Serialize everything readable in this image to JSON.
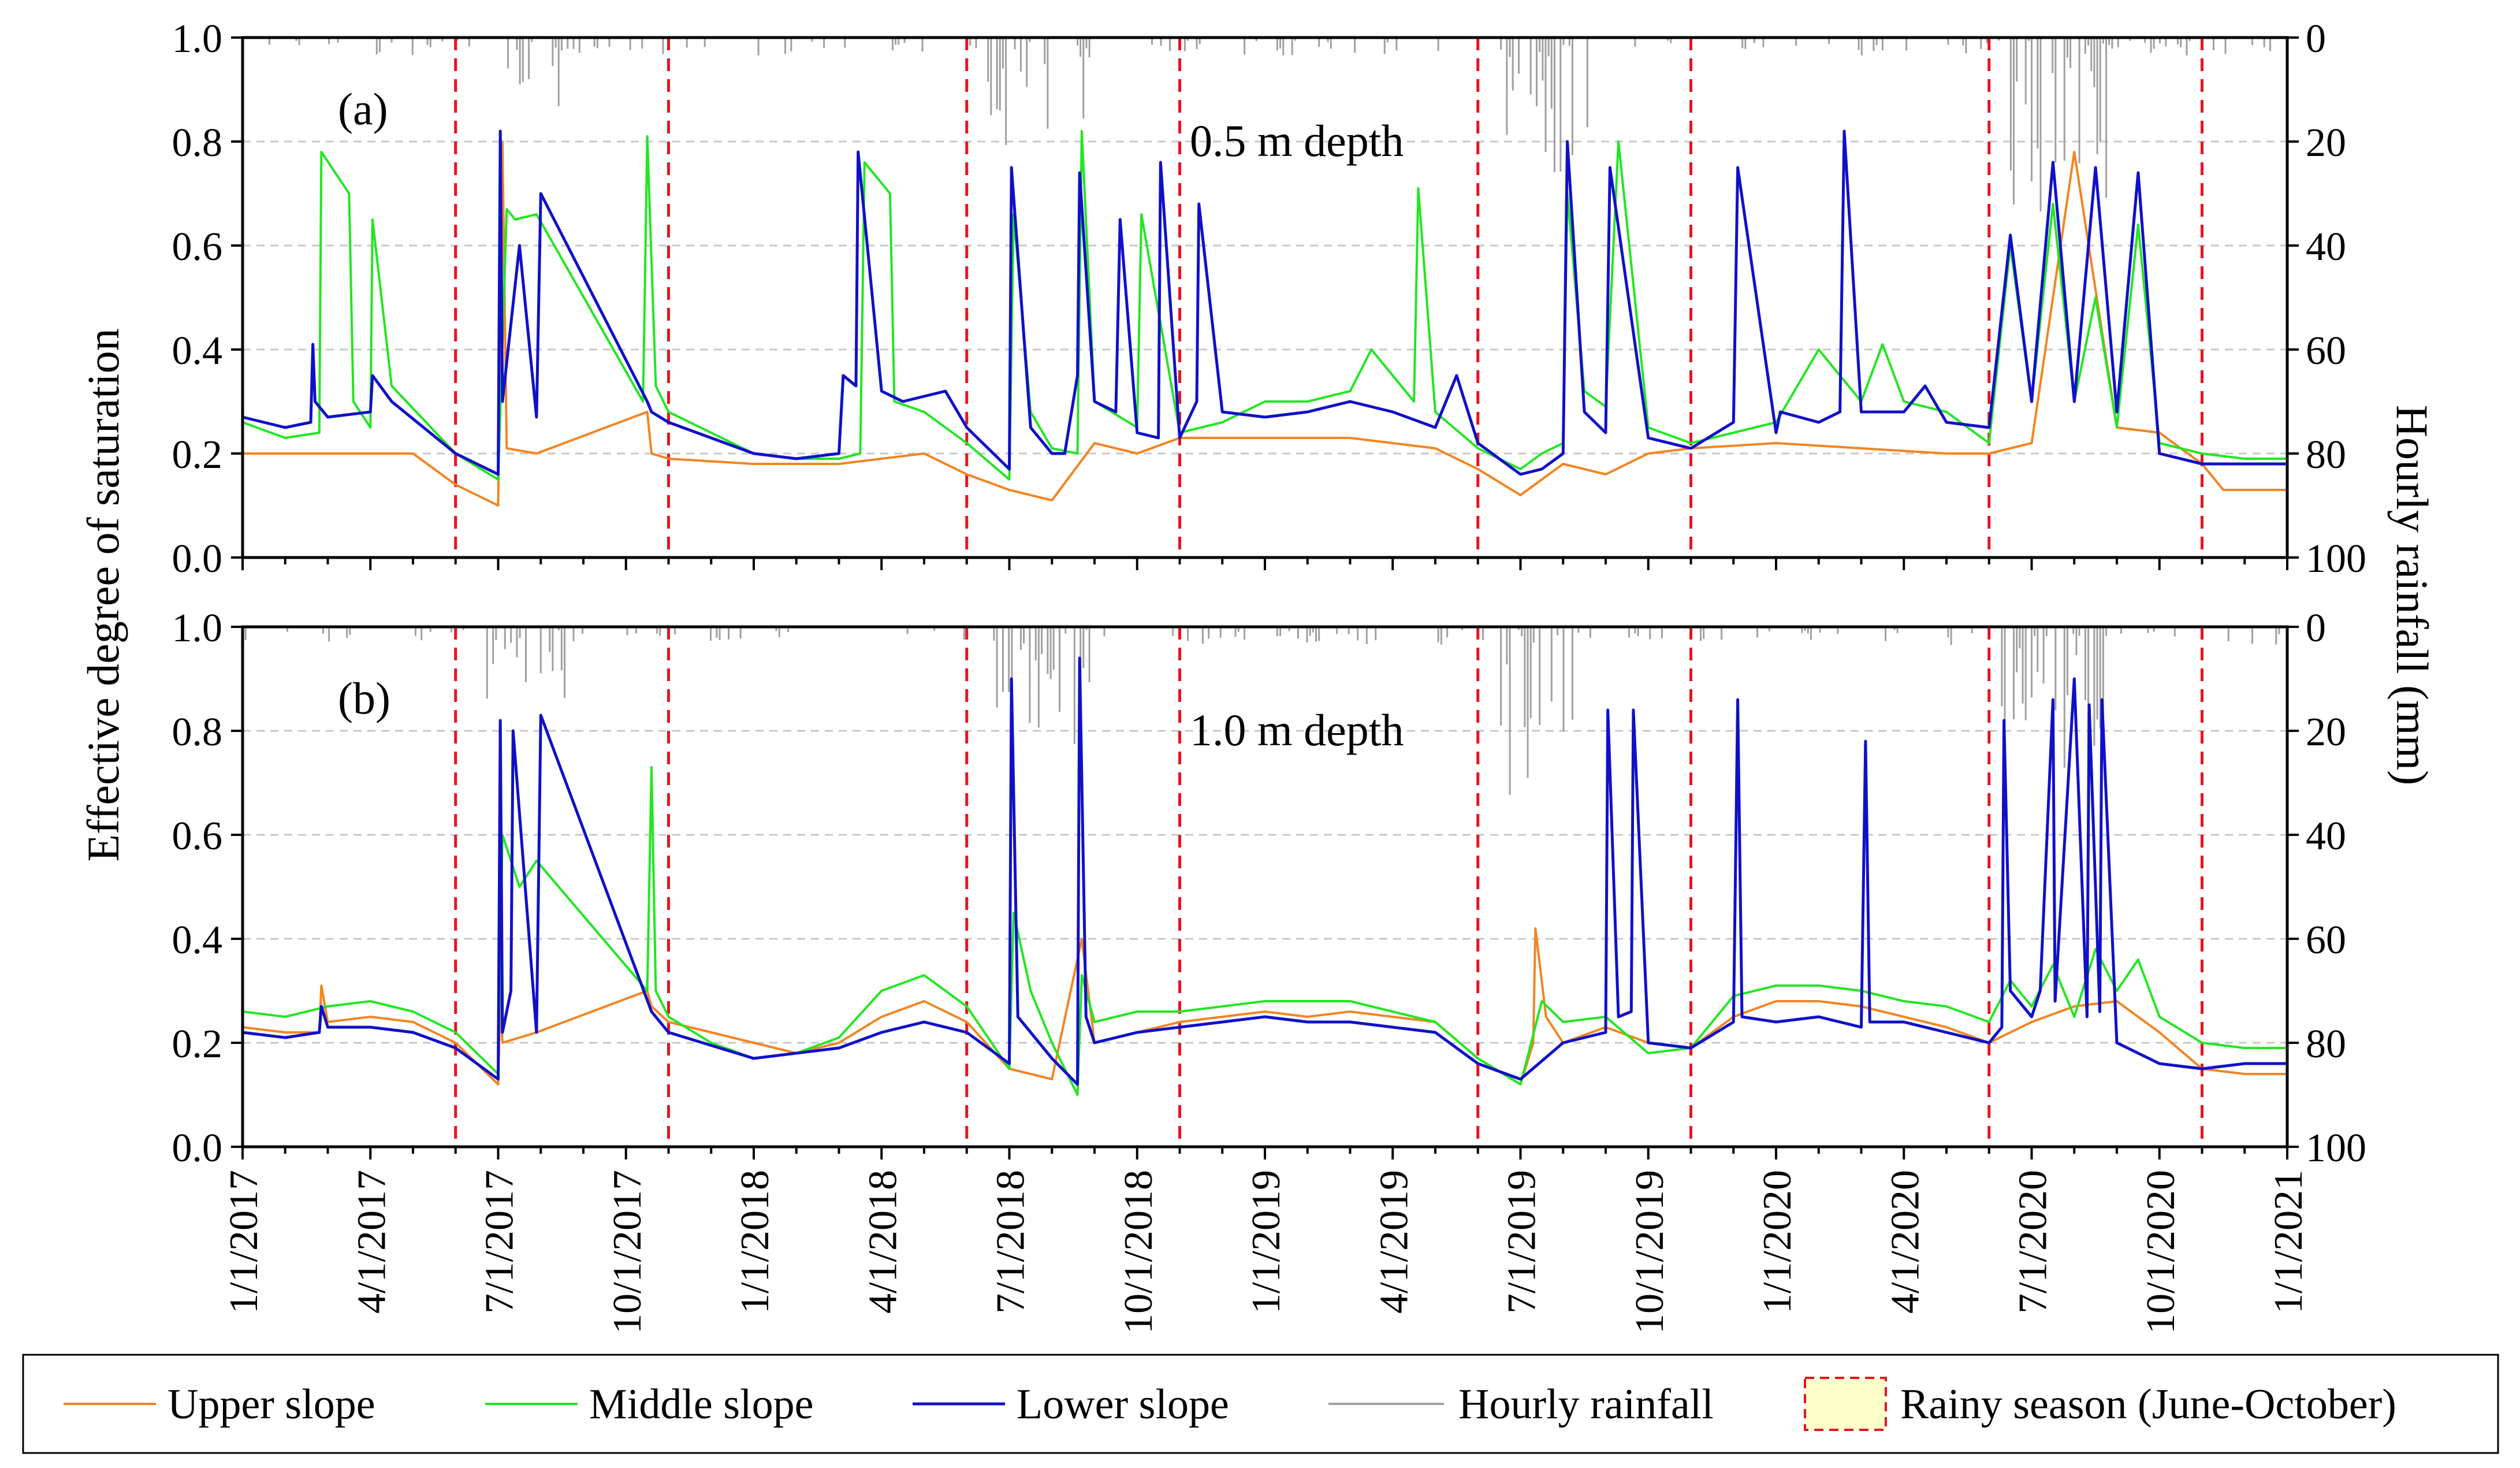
{
  "y_left_label": "Effective degree of saturation",
  "y_right_label": "Hourly rainfall (mm)",
  "x_tick_labels": [
    "1/1/2017",
    "4/1/2017",
    "7/1/2017",
    "10/1/2017",
    "1/1/2018",
    "4/1/2018",
    "7/1/2018",
    "10/1/2018",
    "1/1/2019",
    "4/1/2019",
    "7/1/2019",
    "10/1/2019",
    "1/1/2020",
    "4/1/2020",
    "7/1/2020",
    "10/1/2020",
    "1/1/2021"
  ],
  "y_left_ticks": [
    "0.0",
    "0.2",
    "0.4",
    "0.6",
    "0.8",
    "1.0"
  ],
  "y_right_ticks": [
    "0",
    "20",
    "40",
    "60",
    "80",
    "100"
  ],
  "colors": {
    "upper": "#F28522",
    "middle": "#22E622",
    "lower": "#1010C8",
    "rain": "#A0A0A0",
    "rainy_boundary": "#E8141E",
    "rainy_fill": "#FFFFCC",
    "grid": "#C8C8C8"
  },
  "legend": {
    "upper": "Upper slope",
    "middle": "Middle slope",
    "lower": "Lower slope",
    "rain": "Hourly rainfall",
    "rainy": "Rainy season (June-October)"
  },
  "chart_data": {
    "type": "line",
    "x_unit": "month index since Jan 2017",
    "xlim": [
      0,
      48
    ],
    "x_ticks": [
      0,
      3,
      6,
      9,
      12,
      15,
      18,
      21,
      24,
      27,
      30,
      33,
      36,
      39,
      42,
      45,
      48
    ],
    "ylim_left": [
      0,
      1.0
    ],
    "ylim_right": [
      100,
      0
    ],
    "rainy_season_boundaries": [
      5.0,
      10.0,
      17.0,
      22.0,
      29.0,
      34.0,
      41.0,
      46.0
    ],
    "panels": [
      {
        "label": "(a)",
        "annotation": "0.5 m depth",
        "rainfall_bursts": [
          {
            "start": 5.7,
            "end": 7.6,
            "max_mm": 18
          },
          {
            "start": 17.5,
            "end": 19.9,
            "max_mm": 22
          },
          {
            "start": 29.5,
            "end": 31.6,
            "max_mm": 30
          },
          {
            "start": 41.3,
            "end": 43.8,
            "max_mm": 35
          }
        ],
        "series": [
          {
            "name": "Upper slope",
            "key": "upper",
            "x": [
              0,
              2,
              4,
              5,
              6,
              6.1,
              6.2,
              6.9,
              9.5,
              9.6,
              10,
              12,
              14,
              16,
              17,
              18,
              19,
              20,
              21,
              22,
              24,
              26,
              27,
              28,
              29,
              30,
              31,
              32,
              33,
              34,
              36,
              38,
              40,
              41,
              42,
              43,
              44,
              45,
              46,
              46.5,
              47,
              48
            ],
            "y": [
              0.2,
              0.2,
              0.2,
              0.14,
              0.1,
              0.8,
              0.21,
              0.2,
              0.28,
              0.2,
              0.19,
              0.18,
              0.18,
              0.2,
              0.16,
              0.13,
              0.11,
              0.22,
              0.2,
              0.23,
              0.23,
              0.23,
              0.22,
              0.21,
              0.17,
              0.12,
              0.18,
              0.16,
              0.2,
              0.21,
              0.22,
              0.21,
              0.2,
              0.2,
              0.22,
              0.78,
              0.25,
              0.24,
              0.18,
              0.13,
              0.13,
              0.13
            ]
          },
          {
            "name": "Middle slope",
            "key": "middle",
            "x": [
              0,
              1,
              1.8,
              1.85,
              2.5,
              2.6,
              3.0,
              3.05,
              3.5,
              5,
              6,
              6.2,
              6.4,
              6.9,
              9.4,
              9.5,
              9.7,
              10,
              12,
              13,
              14,
              14.5,
              14.6,
              15.2,
              15.3,
              16,
              17,
              18,
              18.1,
              18.5,
              19,
              19.6,
              19.7,
              20,
              21,
              21.1,
              22,
              23,
              24,
              25,
              26,
              26.5,
              27,
              27.5,
              27.6,
              28,
              29,
              30,
              30.5,
              31,
              31.1,
              31.5,
              32,
              32.3,
              33,
              34,
              35,
              36,
              37,
              38,
              38.5,
              39,
              40,
              41,
              41.5,
              42,
              42.5,
              43,
              43.5,
              44,
              44.5,
              45,
              46,
              47,
              48
            ],
            "y": [
              0.26,
              0.23,
              0.24,
              0.78,
              0.7,
              0.3,
              0.25,
              0.65,
              0.33,
              0.2,
              0.15,
              0.67,
              0.65,
              0.66,
              0.3,
              0.81,
              0.33,
              0.28,
              0.2,
              0.19,
              0.19,
              0.2,
              0.76,
              0.7,
              0.3,
              0.28,
              0.22,
              0.15,
              0.66,
              0.28,
              0.21,
              0.2,
              0.82,
              0.3,
              0.25,
              0.66,
              0.24,
              0.26,
              0.3,
              0.3,
              0.32,
              0.4,
              0.35,
              0.3,
              0.71,
              0.28,
              0.21,
              0.17,
              0.2,
              0.22,
              0.7,
              0.32,
              0.29,
              0.8,
              0.25,
              0.22,
              0.24,
              0.26,
              0.4,
              0.3,
              0.41,
              0.3,
              0.28,
              0.22,
              0.6,
              0.3,
              0.68,
              0.3,
              0.5,
              0.25,
              0.64,
              0.22,
              0.2,
              0.19,
              0.19
            ]
          },
          {
            "name": "Lower slope",
            "key": "lower",
            "x": [
              0,
              1,
              1.6,
              1.65,
              1.7,
              2,
              3,
              3.05,
              3.5,
              5,
              6,
              6.05,
              6.1,
              6.5,
              6.9,
              7.0,
              9.5,
              9.6,
              10,
              12,
              13,
              14,
              14.1,
              14.4,
              14.45,
              15,
              15.5,
              16.5,
              17,
              18,
              18.05,
              18.5,
              19,
              19.3,
              19.6,
              19.65,
              20,
              20.5,
              20.6,
              21,
              21.5,
              21.55,
              22,
              22.4,
              22.45,
              23,
              24,
              25,
              26,
              27,
              28,
              28.5,
              29,
              30,
              30.5,
              31,
              31.1,
              31.5,
              32,
              32.1,
              33,
              34,
              35,
              35.1,
              36,
              36.1,
              37,
              37.5,
              37.6,
              38,
              39,
              39.5,
              40,
              41,
              41.5,
              42,
              42.5,
              43,
              43.5,
              44,
              44.5,
              45,
              46,
              47,
              48
            ],
            "y": [
              0.27,
              0.25,
              0.26,
              0.41,
              0.3,
              0.27,
              0.28,
              0.35,
              0.3,
              0.2,
              0.16,
              0.82,
              0.3,
              0.6,
              0.27,
              0.7,
              0.3,
              0.28,
              0.26,
              0.2,
              0.19,
              0.2,
              0.35,
              0.33,
              0.78,
              0.32,
              0.3,
              0.32,
              0.25,
              0.17,
              0.75,
              0.25,
              0.2,
              0.2,
              0.35,
              0.74,
              0.3,
              0.28,
              0.65,
              0.24,
              0.23,
              0.76,
              0.23,
              0.3,
              0.68,
              0.28,
              0.27,
              0.28,
              0.3,
              0.28,
              0.25,
              0.35,
              0.22,
              0.16,
              0.17,
              0.2,
              0.8,
              0.28,
              0.24,
              0.75,
              0.23,
              0.21,
              0.26,
              0.75,
              0.24,
              0.28,
              0.26,
              0.28,
              0.82,
              0.28,
              0.28,
              0.33,
              0.26,
              0.25,
              0.62,
              0.3,
              0.76,
              0.3,
              0.75,
              0.28,
              0.74,
              0.2,
              0.18,
              0.18,
              0.18
            ]
          }
        ]
      },
      {
        "label": "(b)",
        "annotation": "1.0 m depth",
        "rainfall_bursts": [
          {
            "start": 5.7,
            "end": 7.6,
            "max_mm": 20
          },
          {
            "start": 17.5,
            "end": 19.9,
            "max_mm": 26
          },
          {
            "start": 29.5,
            "end": 31.6,
            "max_mm": 35
          },
          {
            "start": 41.3,
            "end": 43.8,
            "max_mm": 32
          }
        ],
        "series": [
          {
            "name": "Upper slope",
            "key": "upper",
            "x": [
              0,
              1,
              1.8,
              1.85,
              2,
              3,
              4,
              5,
              6,
              6.05,
              6.1,
              6.9,
              9.5,
              9.6,
              10,
              11,
              12,
              13,
              14,
              15,
              16,
              17,
              18,
              19,
              19.7,
              20,
              21,
              22,
              23,
              24,
              25,
              26,
              27,
              28,
              29,
              30,
              30.3,
              30.35,
              30.6,
              31,
              32,
              33,
              34,
              35,
              36,
              37,
              38,
              39,
              40,
              41,
              42,
              43,
              44,
              45,
              46,
              47,
              48
            ],
            "y": [
              0.23,
              0.22,
              0.22,
              0.31,
              0.24,
              0.25,
              0.24,
              0.2,
              0.12,
              0.29,
              0.2,
              0.22,
              0.3,
              0.27,
              0.24,
              0.22,
              0.2,
              0.18,
              0.2,
              0.25,
              0.28,
              0.24,
              0.15,
              0.13,
              0.4,
              0.2,
              0.22,
              0.24,
              0.25,
              0.26,
              0.25,
              0.26,
              0.25,
              0.24,
              0.17,
              0.12,
              0.2,
              0.42,
              0.25,
              0.2,
              0.23,
              0.2,
              0.19,
              0.25,
              0.28,
              0.28,
              0.27,
              0.25,
              0.23,
              0.2,
              0.24,
              0.27,
              0.28,
              0.22,
              0.15,
              0.14,
              0.14
            ]
          },
          {
            "name": "Middle slope",
            "key": "middle",
            "x": [
              0,
              1,
              2,
              3,
              4,
              5,
              6,
              6.1,
              6.5,
              6.9,
              9.5,
              9.6,
              9.7,
              10,
              11,
              12,
              13,
              14,
              15,
              16,
              17,
              18,
              18.1,
              18.5,
              19,
              19.6,
              19.7,
              20,
              21,
              22,
              23,
              24,
              25,
              26,
              27,
              28,
              29,
              30,
              30.5,
              31,
              32,
              33,
              34,
              35,
              36,
              37,
              38,
              39,
              40,
              41,
              41.5,
              42,
              42.5,
              43,
              43.5,
              44,
              44.5,
              45,
              46,
              47,
              48
            ],
            "y": [
              0.26,
              0.25,
              0.27,
              0.28,
              0.26,
              0.22,
              0.14,
              0.6,
              0.5,
              0.55,
              0.3,
              0.73,
              0.3,
              0.25,
              0.2,
              0.17,
              0.18,
              0.21,
              0.3,
              0.33,
              0.27,
              0.15,
              0.45,
              0.3,
              0.2,
              0.1,
              0.33,
              0.24,
              0.26,
              0.26,
              0.27,
              0.28,
              0.28,
              0.28,
              0.26,
              0.24,
              0.17,
              0.12,
              0.28,
              0.24,
              0.25,
              0.18,
              0.19,
              0.29,
              0.31,
              0.31,
              0.3,
              0.28,
              0.27,
              0.24,
              0.32,
              0.27,
              0.35,
              0.25,
              0.38,
              0.3,
              0.36,
              0.25,
              0.2,
              0.19,
              0.19
            ]
          },
          {
            "name": "Lower slope",
            "key": "lower",
            "x": [
              0,
              1,
              1.8,
              1.85,
              2,
              3,
              4,
              5,
              6,
              6.05,
              6.1,
              6.3,
              6.35,
              6.9,
              7.0,
              9.6,
              10,
              12,
              14,
              15,
              16,
              17,
              18,
              18.05,
              18.2,
              19,
              19.6,
              19.65,
              19.8,
              20,
              21,
              22,
              23,
              24,
              25,
              26,
              27,
              28,
              29,
              30,
              31,
              32,
              32.05,
              32.3,
              32.6,
              32.65,
              33,
              34,
              35,
              35.1,
              35.2,
              36,
              37,
              38,
              38.1,
              38.2,
              39,
              40,
              41,
              41.3,
              41.35,
              41.5,
              42,
              42.2,
              42.5,
              42.55,
              43,
              43.3,
              43.35,
              43.6,
              43.65,
              44,
              45,
              46,
              47,
              48
            ],
            "y": [
              0.22,
              0.21,
              0.22,
              0.27,
              0.23,
              0.23,
              0.22,
              0.19,
              0.13,
              0.82,
              0.22,
              0.3,
              0.8,
              0.22,
              0.83,
              0.26,
              0.22,
              0.17,
              0.19,
              0.22,
              0.24,
              0.22,
              0.16,
              0.9,
              0.25,
              0.17,
              0.12,
              0.94,
              0.25,
              0.2,
              0.22,
              0.23,
              0.24,
              0.25,
              0.24,
              0.24,
              0.23,
              0.22,
              0.16,
              0.13,
              0.2,
              0.22,
              0.84,
              0.25,
              0.26,
              0.84,
              0.2,
              0.19,
              0.24,
              0.86,
              0.25,
              0.24,
              0.25,
              0.23,
              0.78,
              0.24,
              0.24,
              0.22,
              0.2,
              0.23,
              0.82,
              0.3,
              0.25,
              0.3,
              0.86,
              0.28,
              0.9,
              0.25,
              0.85,
              0.26,
              0.86,
              0.2,
              0.16,
              0.15,
              0.16,
              0.16
            ]
          }
        ]
      }
    ]
  }
}
